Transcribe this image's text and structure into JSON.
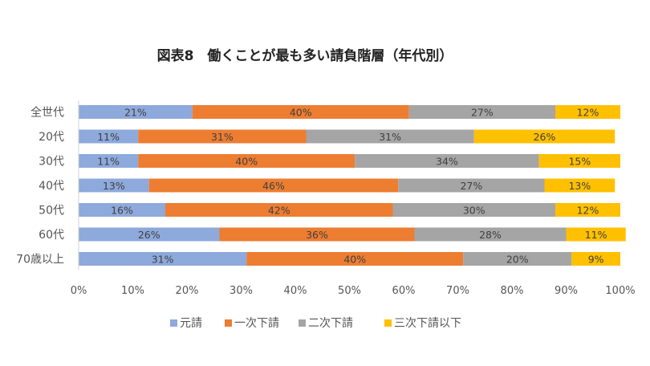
{
  "chart_data": {
    "type": "bar",
    "orientation": "horizontal",
    "stacked": "percent",
    "title": "図表8　働くことが最も多い請負階層（年代別）",
    "categories": [
      "全世代",
      "20代",
      "30代",
      "40代",
      "50代",
      "60代",
      "70歳以上"
    ],
    "series": [
      {
        "name": "元請",
        "color": "#8EA9DB",
        "values": [
          21,
          11,
          11,
          13,
          16,
          26,
          31
        ]
      },
      {
        "name": "一次下請",
        "color": "#ED7D31",
        "values": [
          40,
          31,
          40,
          46,
          42,
          36,
          40
        ]
      },
      {
        "name": "二次下請",
        "color": "#A5A5A5",
        "values": [
          27,
          31,
          34,
          27,
          30,
          28,
          20
        ]
      },
      {
        "name": "三次下請以下",
        "color": "#FFC000",
        "values": [
          12,
          26,
          15,
          13,
          12,
          11,
          9
        ]
      }
    ],
    "xlim": [
      0,
      100
    ],
    "xticks": [
      "0%",
      "10%",
      "20%",
      "30%",
      "40%",
      "50%",
      "60%",
      "70%",
      "80%",
      "90%",
      "100%"
    ],
    "value_suffix": "%",
    "legend_position": "bottom",
    "grid": false
  }
}
